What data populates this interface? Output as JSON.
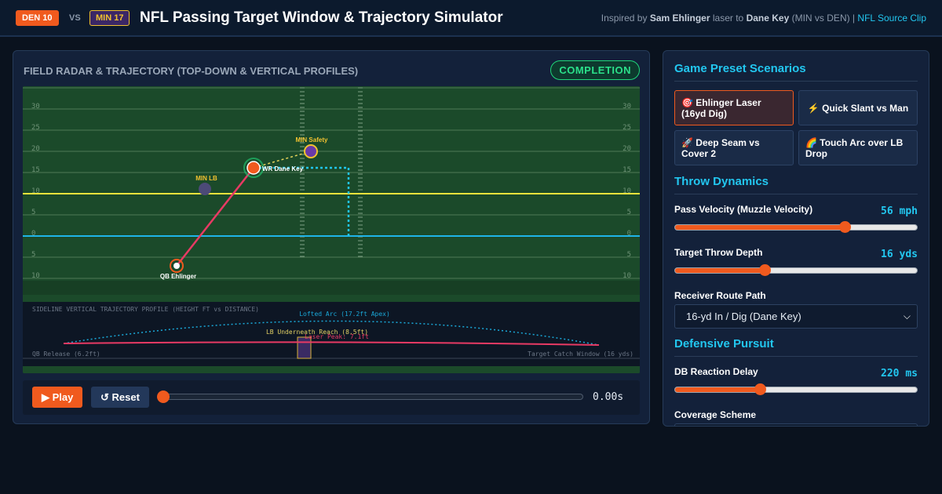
{
  "header": {
    "team_home": "DEN 10",
    "vs": "VS",
    "team_away": "MIN 17",
    "title": "NFL Passing Target Window & Trajectory Simulator",
    "credit_prefix": "Inspired by",
    "credit_qb": "Sam Ehlinger",
    "credit_mid": "laser to",
    "credit_wr": "Dane Key",
    "credit_matchup": "(MIN vs DEN) |",
    "credit_link": "NFL Source Clip"
  },
  "field_panel": {
    "title": "FIELD RADAR & TRAJECTORY (TOP-DOWN & VERTICAL PROFILES)",
    "status": "COMPLETION",
    "yard_labels_left": [
      "30",
      "25",
      "20",
      "15",
      "10",
      "5",
      "0",
      "5",
      "10"
    ],
    "yard_labels_right": [
      "30",
      "25",
      "20",
      "15",
      "10",
      "5",
      "0",
      "5",
      "10"
    ],
    "players": {
      "safety": "MIN Safety",
      "receiver": "WR Dane Key",
      "linebacker": "MIN LB",
      "quarterback": "QB Ehlinger"
    },
    "profile": {
      "heading": "SIDELINE VERTICAL TRAJECTORY PROFILE (HEIGHT FT vs DISTANCE)",
      "lofted_label": "Lofted Arc (17.2ft Apex)",
      "lb_reach_label": "LB Underneath Reach (8.5ft)",
      "laser_label": "Laser Peak: 7.1ft",
      "release_label": "QB Release (6.2ft)",
      "catch_label": "Target Catch Window (16 yds)"
    },
    "controls": {
      "play_label": "▶ Play",
      "reset_label": "↺ Reset",
      "scrub_progress": 0,
      "time": "0.00s"
    }
  },
  "side_panel": {
    "presets_title": "Game Preset Scenarios",
    "presets": [
      {
        "label": "🎯 Ehlinger Laser (16yd Dig)",
        "active": true
      },
      {
        "label": "⚡ Quick Slant vs Man",
        "active": false
      },
      {
        "label": "🚀 Deep Seam vs Cover 2",
        "active": false
      },
      {
        "label": "🌈 Touch Arc over LB Drop",
        "active": false
      }
    ],
    "throw_title": "Throw Dynamics",
    "velocity_label": "Pass Velocity (Muzzle Velocity)",
    "velocity_value": "56 mph",
    "velocity_level": 0.7,
    "depth_label": "Target Throw Depth",
    "depth_value": "16 yds",
    "depth_level": 0.37,
    "route_label": "Receiver Route Path",
    "route_value": "16-yd In / Dig (Dane Key)",
    "defense_title": "Defensive Pursuit",
    "reaction_label": "DB Reaction Delay",
    "reaction_value": "220 ms",
    "reaction_level": 0.35,
    "coverage_label": "Coverage Scheme"
  },
  "colors": {
    "accent": "#f05a1e",
    "cyan": "#22c7f0",
    "completion": "#2be08a",
    "field": "#1b4a2a",
    "first_down_line": "#f2e33c",
    "scrimmage_line": "#1fb4e8",
    "laser_path": "#e83a64",
    "safety": "#6a3aa8"
  }
}
